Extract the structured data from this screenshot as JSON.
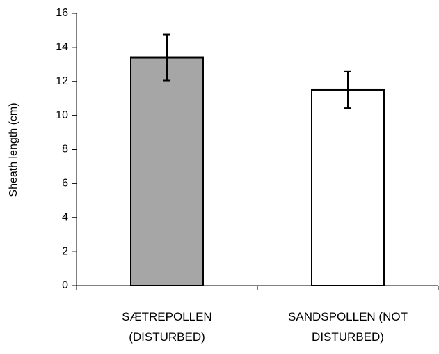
{
  "chart_data": {
    "type": "bar",
    "y_label": "Sheath length (cm)",
    "categories": [
      "SÆTREPOLLEN (DISTURBED)",
      "SANDSPOLLEN (NOT DISTURBED)"
    ],
    "values": [
      13.4,
      11.5
    ],
    "errors": [
      1.35,
      1.07
    ],
    "colors": [
      "#a6a6a6",
      "#ffffff"
    ],
    "ylim": [
      0,
      16
    ],
    "yticks": [
      0,
      2,
      4,
      6,
      8,
      10,
      12,
      14,
      16
    ],
    "grid": false
  }
}
